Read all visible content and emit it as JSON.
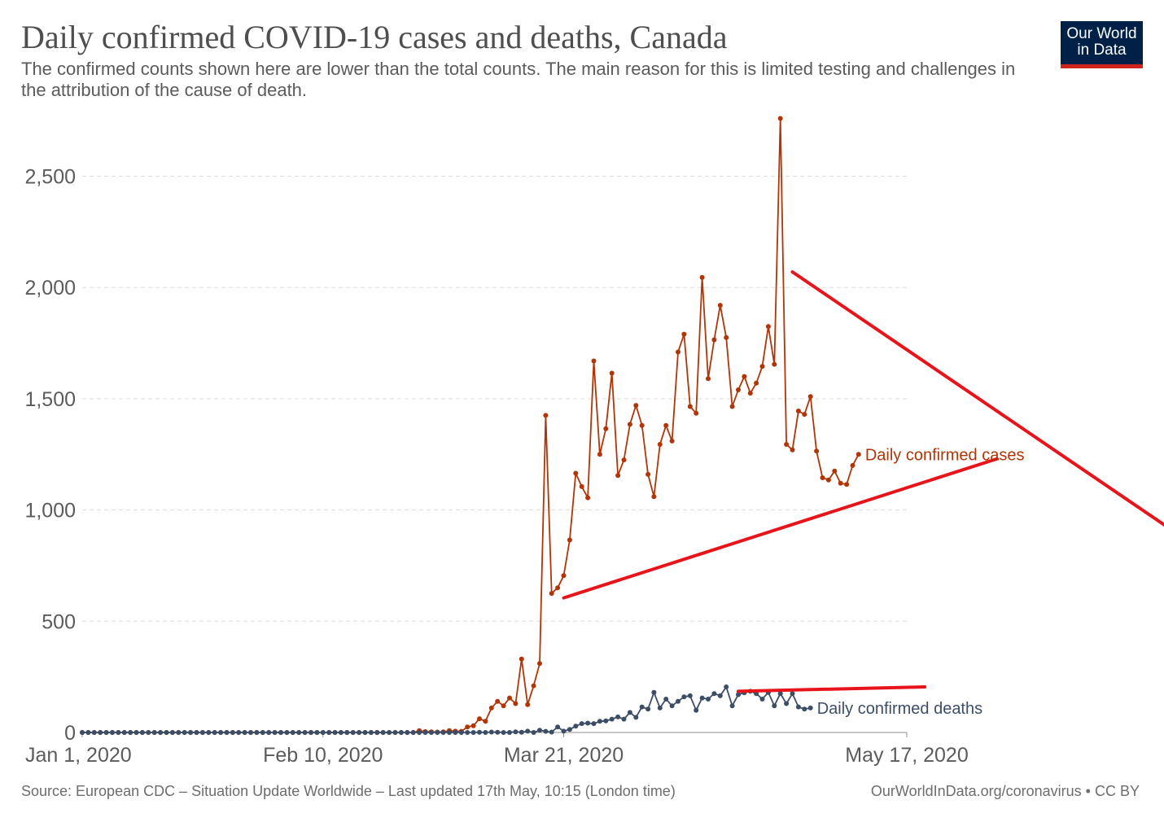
{
  "title": "Daily confirmed COVID-19 cases and deaths, Canada",
  "subtitle": "The confirmed counts shown here are lower than the total counts. The main reason for this is limited testing and challenges in the attribution of the cause of death.",
  "logo": {
    "line1": "Our World",
    "line2": "in Data",
    "bg_color": "#002147",
    "accent_color": "#ce261e"
  },
  "footer": {
    "source": "Source: European CDC – Situation Update Worldwide – Last updated 17th May, 10:15 (London time)",
    "url": "OurWorldInData.org/coronavirus • CC BY"
  },
  "chart_data": {
    "type": "line",
    "x_start": "2020-01-01",
    "x_end": "2020-05-17",
    "ylim": [
      0,
      2780
    ],
    "grid": true,
    "y_ticks": [
      {
        "value": 0,
        "label": "0"
      },
      {
        "value": 500,
        "label": "500"
      },
      {
        "value": 1000,
        "label": "1,000"
      },
      {
        "value": 1500,
        "label": "1,500"
      },
      {
        "value": 2000,
        "label": "2,000"
      },
      {
        "value": 2500,
        "label": "2,500"
      }
    ],
    "x_ticks": [
      {
        "date": "2020-01-01",
        "label": "Jan 1, 2020"
      },
      {
        "date": "2020-02-10",
        "label": "Feb 10, 2020"
      },
      {
        "date": "2020-03-21",
        "label": "Mar 21, 2020"
      },
      {
        "date": "2020-05-17",
        "label": "May 17, 2020"
      }
    ],
    "series": [
      {
        "name": "Daily confirmed cases",
        "color": "#b13507",
        "start_date": "2020-02-26",
        "values": [
          8,
          4,
          3,
          2,
          3,
          8,
          6,
          5,
          25,
          30,
          62,
          50,
          110,
          140,
          120,
          155,
          130,
          330,
          125,
          210,
          310,
          1425,
          625,
          650,
          705,
          865,
          1165,
          1105,
          1055,
          1670,
          1250,
          1365,
          1615,
          1155,
          1225,
          1385,
          1470,
          1380,
          1160,
          1060,
          1295,
          1380,
          1310,
          1710,
          1790,
          1465,
          1435,
          2045,
          1590,
          1765,
          1920,
          1775,
          1465,
          1540,
          1600,
          1525,
          1570,
          1645,
          1825,
          1655,
          2760,
          1295,
          1270,
          1445,
          1430,
          1510,
          1265,
          1145,
          1135,
          1175,
          1120,
          1115,
          1200,
          1250
        ]
      },
      {
        "name": "Daily confirmed deaths",
        "color": "#3c4e66",
        "start_date": "2020-03-07",
        "values": [
          1,
          0,
          2,
          1,
          0,
          0,
          3,
          1,
          6,
          0,
          10,
          5,
          2,
          25,
          6,
          14,
          28,
          40,
          42,
          40,
          50,
          52,
          60,
          70,
          60,
          90,
          68,
          115,
          105,
          180,
          110,
          150,
          120,
          140,
          160,
          165,
          100,
          155,
          150,
          175,
          165,
          205,
          120,
          170,
          178,
          185,
          175,
          150,
          180,
          120,
          175,
          130,
          175,
          115,
          105,
          110
        ]
      }
    ],
    "annotations": [
      {
        "type": "trend-line",
        "color": "#e8141b",
        "from": {
          "date": "2020-03-21",
          "value": 605
        },
        "to": {
          "date": "2020-06-01",
          "value": 1230
        }
      },
      {
        "type": "trend-line",
        "color": "#e8141b",
        "from": {
          "date": "2020-04-28",
          "value": 2070
        },
        "to": {
          "date": "2020-07-09",
          "value": 745
        }
      },
      {
        "type": "trend-line",
        "color": "#e8141b",
        "from": {
          "date": "2020-04-19",
          "value": 185
        },
        "to": {
          "date": "2020-05-20",
          "value": 205
        }
      }
    ]
  }
}
